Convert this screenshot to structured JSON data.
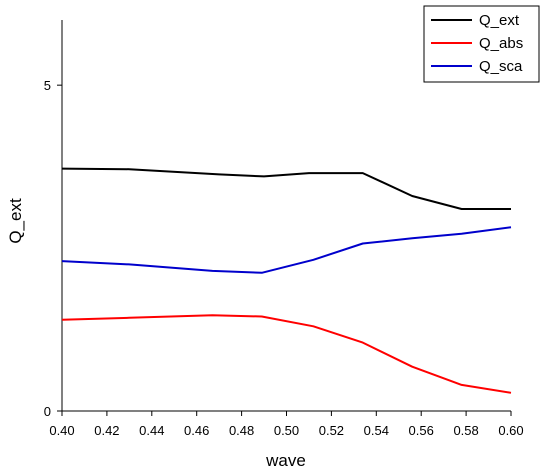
{
  "chart_data": {
    "type": "line",
    "xlabel": "wave",
    "ylabel": "Q_ext",
    "xlim": [
      0.4,
      0.6
    ],
    "ylim": [
      0,
      6
    ],
    "x_ticks": [
      "0.40",
      "0.42",
      "0.44",
      "0.46",
      "0.48",
      "0.50",
      "0.52",
      "0.54",
      "0.56",
      "0.58",
      "0.60"
    ],
    "y_ticks": [
      "0",
      "5"
    ],
    "x_tick_values": [
      0.4,
      0.42,
      0.44,
      0.46,
      0.48,
      0.5,
      0.52,
      0.54,
      0.56,
      0.58,
      0.6
    ],
    "y_tick_values": [
      0,
      5
    ],
    "legend_position": "top-right",
    "grid": false,
    "series": [
      {
        "name": "Q_ext",
        "color": "#000000",
        "x": [
          0.4,
          0.43,
          0.47,
          0.49,
          0.51,
          0.534,
          0.556,
          0.578,
          0.6
        ],
        "y": [
          3.72,
          3.71,
          3.63,
          3.6,
          3.65,
          3.65,
          3.3,
          3.1,
          3.1
        ]
      },
      {
        "name": "Q_abs",
        "color": "#ff0000",
        "x": [
          0.4,
          0.43,
          0.467,
          0.489,
          0.512,
          0.534,
          0.556,
          0.578,
          0.6
        ],
        "y": [
          1.4,
          1.43,
          1.47,
          1.45,
          1.3,
          1.05,
          0.68,
          0.4,
          0.28
        ]
      },
      {
        "name": "Q_sca",
        "color": "#0000cc",
        "x": [
          0.4,
          0.43,
          0.467,
          0.489,
          0.512,
          0.534,
          0.556,
          0.578,
          0.6
        ],
        "y": [
          2.3,
          2.25,
          2.15,
          2.12,
          2.32,
          2.57,
          2.65,
          2.72,
          2.82
        ]
      }
    ]
  }
}
